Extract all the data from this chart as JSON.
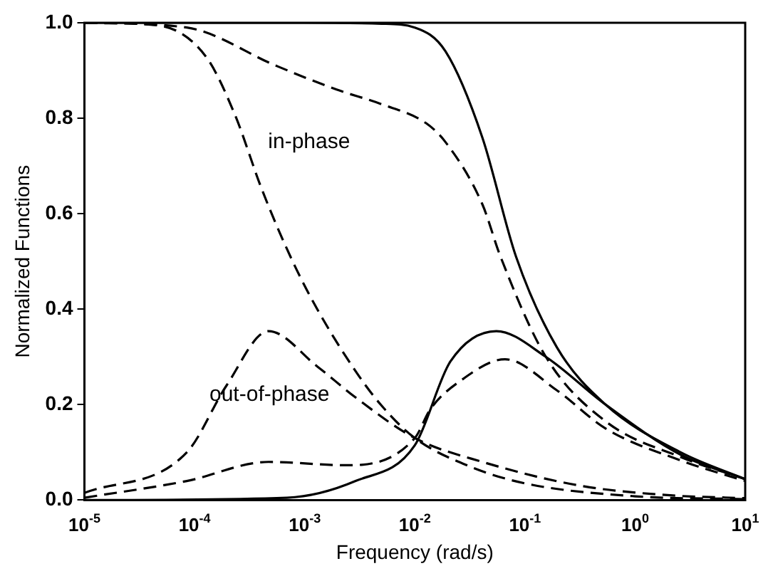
{
  "chart_data": {
    "type": "line",
    "xlabel": "Frequency (rad/s)",
    "ylabel": "Normalized Functions",
    "log": "x",
    "xlim": [
      1e-05,
      10
    ],
    "ylim": [
      0,
      1
    ],
    "xticks": [
      {
        "value": 1e-05,
        "label": "10$^{-5}$"
      },
      {
        "value": 0.0001,
        "label": "10$^{-4}$"
      },
      {
        "value": 0.001,
        "label": "10$^{-3}$"
      },
      {
        "value": 0.01,
        "label": "10$^{-2}$"
      },
      {
        "value": 0.1,
        "label": "10$^{-1}$"
      },
      {
        "value": 1,
        "label": "10$^{0}$"
      },
      {
        "value": 10,
        "label": "10$^{1}$"
      }
    ],
    "yticks": [
      {
        "value": 0,
        "label": "0.0"
      },
      {
        "value": 0.2,
        "label": "0.2"
      },
      {
        "value": 0.4,
        "label": "0.4"
      },
      {
        "value": 0.6,
        "label": "0.6"
      },
      {
        "value": 0.8,
        "label": "0.8"
      },
      {
        "value": 1,
        "label": "1.0"
      }
    ],
    "grid": false,
    "legend": false,
    "marker": "none",
    "annotations": [
      "in-phase",
      "out-of-phase"
    ],
    "series": [
      {
        "color": "#000000",
        "line_style": "solid",
        "x": [
          1e-05,
          0.001,
          0.005,
          0.01,
          0.019,
          0.041,
          0.083,
          0.195,
          0.54,
          2.6,
          10
        ],
        "values": [
          1,
          1,
          0.998,
          0.99,
          0.94,
          0.76,
          0.51,
          0.32,
          0.2,
          0.1,
          0.044
        ]
      },
      {
        "color": "#000000",
        "line_style": "dashed",
        "x": [
          1e-05,
          8.5e-05,
          0.00055,
          0.00195,
          0.0049,
          0.0126,
          0.019,
          0.041,
          0.06,
          0.155,
          0.54,
          2.6,
          10
        ],
        "values": [
          1,
          0.99,
          0.91,
          0.86,
          0.83,
          0.79,
          0.75,
          0.62,
          0.51,
          0.3,
          0.165,
          0.09,
          0.044
        ]
      },
      {
        "color": "#000000",
        "line_style": "dashed",
        "x": [
          1e-05,
          4.5e-05,
          0.000126,
          0.00023,
          0.00041,
          0.00076,
          0.0013,
          0.0029,
          0.0049,
          0.01,
          0.032,
          0.1,
          1,
          10
        ],
        "values": [
          1,
          0.995,
          0.93,
          0.81,
          0.65,
          0.505,
          0.4,
          0.27,
          0.2,
          0.13,
          0.07,
          0.035,
          0.008,
          0.002
        ]
      },
      {
        "color": "#000000",
        "line_style": "solid",
        "x": [
          1e-05,
          0.00069,
          0.0029,
          0.01,
          0.021,
          0.055,
          0.155,
          0.54,
          2.6,
          10
        ],
        "values": [
          0,
          0.005,
          0.04,
          0.115,
          0.29,
          0.354,
          0.3,
          0.2,
          0.095,
          0.044
        ]
      },
      {
        "color": "#000000",
        "line_style": "dashed",
        "x": [
          1e-05,
          8.5e-05,
          0.00047,
          0.0024,
          0.01,
          0.0138,
          0.026,
          0.066,
          0.195,
          0.54,
          2.6,
          10
        ],
        "values": [
          0.005,
          0.04,
          0.08,
          0.073,
          0.13,
          0.19,
          0.25,
          0.295,
          0.23,
          0.15,
          0.083,
          0.04
        ]
      },
      {
        "color": "#000000",
        "line_style": "dashed",
        "x": [
          1e-05,
          8.5e-05,
          0.000195,
          0.00047,
          0.0013,
          0.0029,
          0.01,
          0.041,
          0.32,
          2.1,
          10
        ],
        "values": [
          0.015,
          0.1,
          0.24,
          0.354,
          0.28,
          0.215,
          0.13,
          0.08,
          0.03,
          0.01,
          0.004
        ]
      }
    ]
  }
}
